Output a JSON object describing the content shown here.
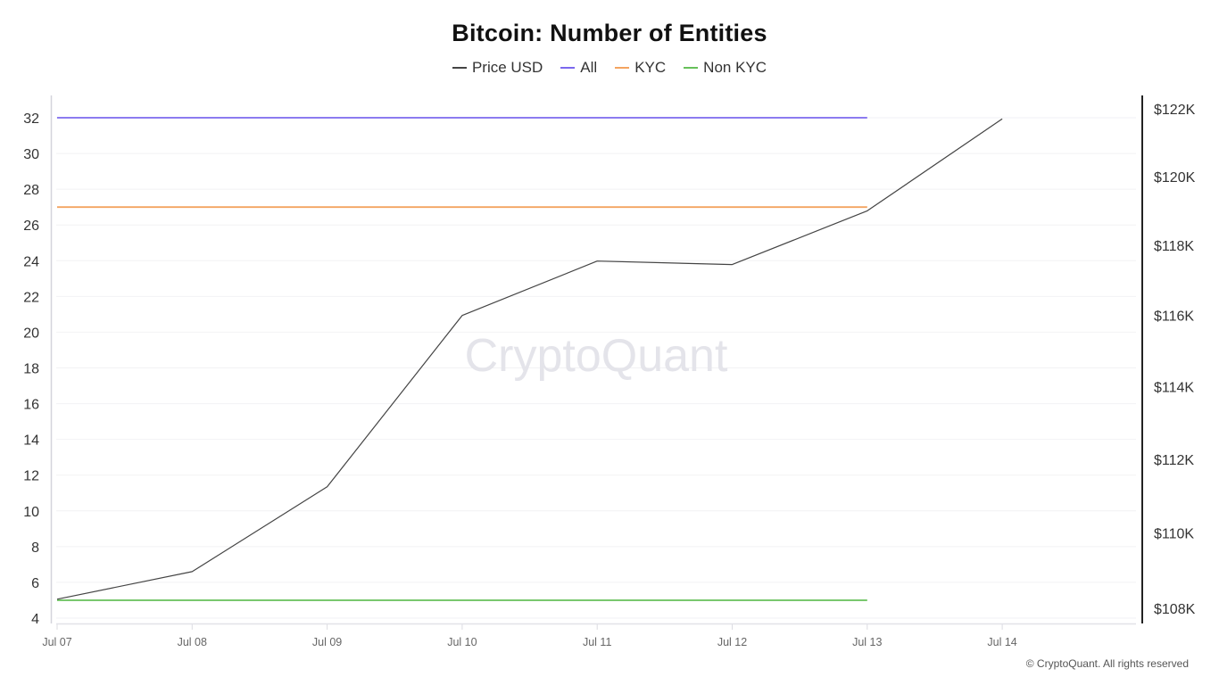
{
  "header": {
    "title": "Bitcoin: Number of Entities"
  },
  "legend": [
    {
      "label": "Price USD",
      "color": "#444444"
    },
    {
      "label": "All",
      "color": "#7b68ee"
    },
    {
      "label": "KYC",
      "color": "#f4a460"
    },
    {
      "label": "Non KYC",
      "color": "#66c05a"
    }
  ],
  "watermark": "CryptoQuant",
  "footer": "© CryptoQuant. All rights reserved",
  "chart_data": {
    "type": "line",
    "title": "Bitcoin: Number of Entities",
    "xlabel": "",
    "ylabel": "",
    "x": [
      "Jul 07",
      "Jul 08",
      "Jul 09",
      "Jul 10",
      "Jul 11",
      "Jul 12",
      "Jul 13",
      "Jul 14"
    ],
    "left_axis": {
      "ticks": [
        4,
        6,
        8,
        10,
        12,
        14,
        16,
        18,
        20,
        22,
        24,
        26,
        28,
        30,
        32
      ],
      "ylim": [
        4,
        32
      ]
    },
    "right_axis": {
      "scale": "log",
      "tick_labels": [
        "$108K",
        "$110K",
        "$112K",
        "$114K",
        "$116K",
        "$118K",
        "$120K",
        "$122K"
      ],
      "ticks": [
        108000,
        110000,
        112000,
        114000,
        116000,
        118000,
        120000,
        122000
      ],
      "ylim": [
        108000,
        122000
      ]
    },
    "series": [
      {
        "name": "Price USD",
        "axis": "right",
        "color": "#444444",
        "values": [
          108240,
          108970,
          111250,
          116000,
          117550,
          117450,
          119000,
          121700
        ]
      },
      {
        "name": "All",
        "axis": "left",
        "color": "#7b68ee",
        "values": [
          32,
          32,
          32,
          32,
          32,
          32,
          32,
          null
        ]
      },
      {
        "name": "KYC",
        "axis": "left",
        "color": "#f4a460",
        "values": [
          27,
          27,
          27,
          27,
          27,
          27,
          27,
          null
        ]
      },
      {
        "name": "Non KYC",
        "axis": "left",
        "color": "#66c05a",
        "values": [
          5,
          5,
          5,
          5,
          5,
          5,
          5,
          null
        ]
      }
    ],
    "grid": true,
    "legend_position": "top"
  }
}
